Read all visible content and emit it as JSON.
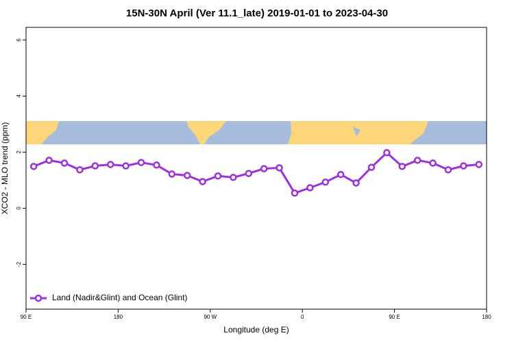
{
  "chart_data": {
    "type": "line",
    "title": "15N-30N April (Ver 11.1_late)   2019-01-01 to 2023-04-30",
    "x_label": "Longitude (deg E)",
    "y_label": "XCO2 - MLO trend (ppm)",
    "x": [
      97.5,
      112.5,
      127.5,
      142.5,
      157.5,
      172.5,
      187.5,
      202.5,
      217.5,
      232.5,
      247.5,
      262.5,
      277.5,
      292.5,
      307.5,
      322.5,
      337.5,
      352.5,
      367.5,
      382.5,
      397.5,
      412.5,
      427.5,
      442.5,
      457.5,
      472.5,
      487.5,
      502.5,
      517.5,
      532.5
    ],
    "series": [
      {
        "name": "Land (Nadir&Glint) and Ocean (Glint)",
        "color": "#9b30e0",
        "values": [
          1.49,
          1.71,
          1.61,
          1.37,
          1.51,
          1.56,
          1.51,
          1.63,
          1.54,
          1.22,
          1.17,
          0.95,
          1.15,
          1.1,
          1.24,
          1.41,
          1.44,
          0.54,
          0.73,
          0.93,
          1.2,
          0.9,
          1.46,
          1.98,
          1.49,
          1.71,
          1.61,
          1.37,
          1.51,
          1.56
        ]
      }
    ],
    "xlim": [
      90,
      540
    ],
    "xticks": [
      {
        "value": 90,
        "label": "90 E"
      },
      {
        "value": 180,
        "label": "180"
      },
      {
        "value": 270,
        "label": "90 W"
      },
      {
        "value": 360,
        "label": "0"
      },
      {
        "value": 450,
        "label": "90 E"
      },
      {
        "value": 540,
        "label": "180"
      }
    ],
    "ylim": [
      -3.6,
      6.45
    ],
    "yticks": [
      -2,
      0,
      2,
      4,
      6
    ],
    "legend": "bottom-left"
  }
}
